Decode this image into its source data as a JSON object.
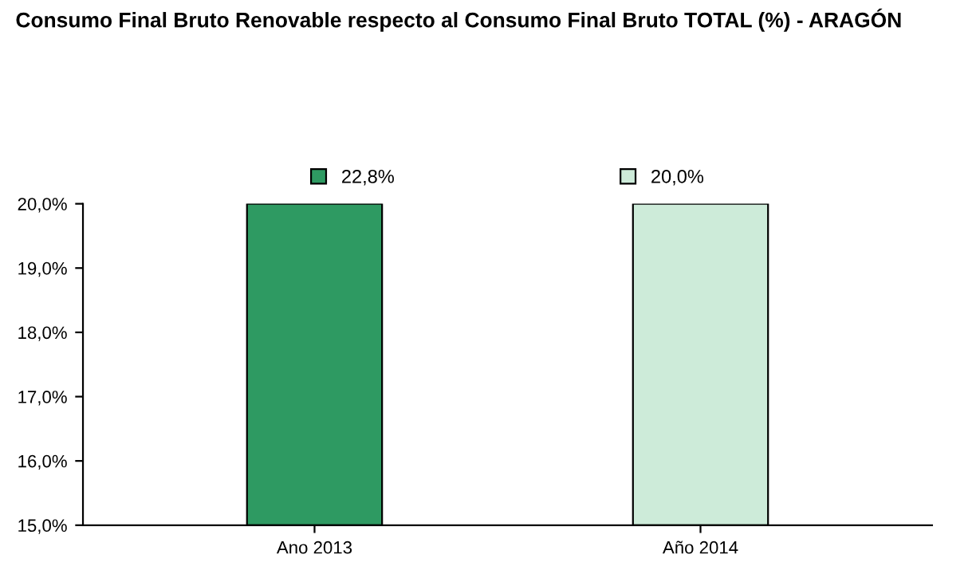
{
  "chart_data": {
    "type": "bar",
    "title": "Consumo Final Bruto Renovable respecto al Consumo Final Bruto TOTAL (%) - ARAGÓN",
    "categories": [
      "Ano 2013",
      "Año 2014"
    ],
    "series": [
      {
        "name": "22,8%",
        "color": "#2e9a62",
        "values": [
          20.0,
          null
        ]
      },
      {
        "name": "20,0%",
        "color": "#cdebd9",
        "values": [
          null,
          20.0
        ]
      }
    ],
    "ylim": [
      15,
      20
    ],
    "yticks": [
      {
        "value": 15,
        "label": "15,0%"
      },
      {
        "value": 16,
        "label": "16,0%"
      },
      {
        "value": 17,
        "label": "17,0%"
      },
      {
        "value": 18,
        "label": "18,0%"
      },
      {
        "value": 19,
        "label": "19,0%"
      },
      {
        "value": 20,
        "label": "20,0%"
      }
    ],
    "grid": false,
    "legend": "top"
  }
}
